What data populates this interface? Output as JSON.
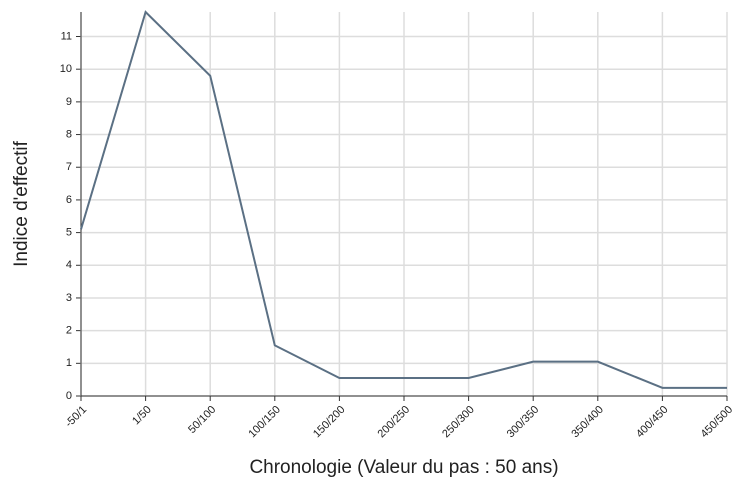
{
  "chart_data": {
    "type": "line",
    "x_label": "Chronologie (Valeur du pas : 50 ans)",
    "y_label": "Indice d'effectif",
    "categories": [
      "-50/1",
      "1/50",
      "50/100",
      "100/150",
      "150/200",
      "200/250",
      "250/300",
      "300/350",
      "350/400",
      "400/450",
      "450/500"
    ],
    "series": [
      {
        "name": "Indice d'effectif",
        "color": "#5b7084",
        "values": [
          5.1,
          11.75,
          9.8,
          1.55,
          0.55,
          0.55,
          0.55,
          1.05,
          1.05,
          0.25,
          0.25
        ]
      }
    ],
    "ylim": [
      0,
      11.75
    ],
    "yticks": [
      0,
      1,
      2,
      3,
      4,
      5,
      6,
      7,
      8,
      9,
      10,
      11
    ],
    "grid": true
  }
}
